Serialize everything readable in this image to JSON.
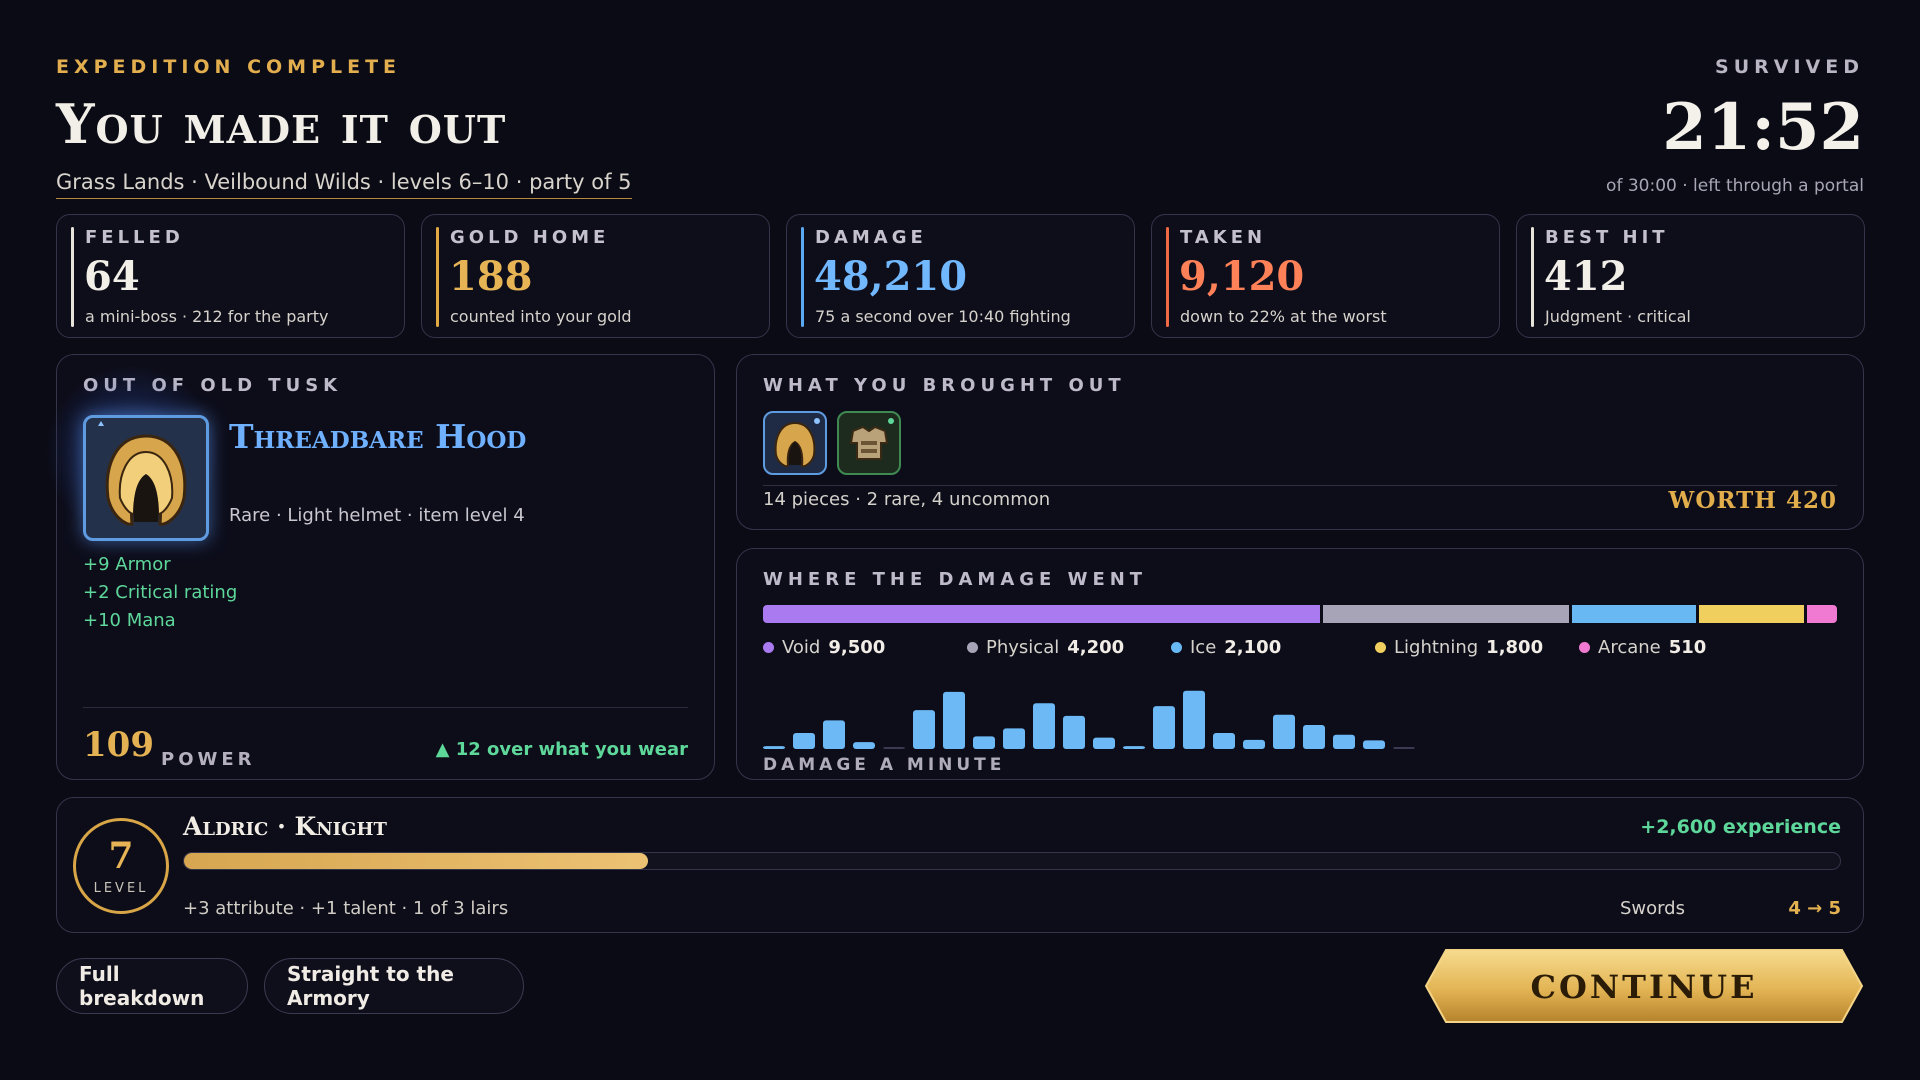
{
  "header": {
    "eyebrow": "EXPEDITION COMPLETE",
    "title": "You made it out",
    "subtitle": "Grass Lands · Veilbound Wilds · levels 6–10 · party of 5",
    "survived_label": "SURVIVED",
    "survived_time": "21:52",
    "survived_sub": "of 30:00 · left through a portal"
  },
  "stats": [
    {
      "label": "FELLED",
      "value": "64",
      "sub": "a mini-boss · 212 for the party",
      "color": "#f2efe8",
      "accent": "#e8e4da"
    },
    {
      "label": "GOLD HOME",
      "value": "188",
      "sub": "counted into your gold",
      "color": "#e6b455",
      "accent": "#e0a944"
    },
    {
      "label": "DAMAGE",
      "value": "48,210",
      "sub": "75 a second over 10:40 fighting",
      "color": "#72b8ff",
      "accent": "#5aa7f2"
    },
    {
      "label": "TAKEN",
      "value": "9,120",
      "sub": "down to 22% at the worst",
      "color": "#ff8158",
      "accent": "#ef6a44"
    },
    {
      "label": "BEST HIT",
      "value": "412",
      "sub": "Judgment · critical",
      "color": "#f2efe8",
      "accent": "#e8e4da"
    }
  ],
  "loot": {
    "label": "OUT OF OLD TUSK",
    "item_name": "Threadbare Hood",
    "item_meta": "Rare · Light helmet · item level 4",
    "item_icon": "hood-icon",
    "item_stats": [
      "+9 Armor",
      "+2 Critical rating",
      "+10 Mana"
    ],
    "power_value": "109",
    "power_label": "POWER",
    "power_compare": "▲ 12 over what you wear"
  },
  "brought_out": {
    "label": "WHAT YOU BROUGHT OUT",
    "thumbs": [
      "hood-icon",
      "chest-armor-icon"
    ],
    "count_text": "14 pieces · 2 rare, 4 uncommon",
    "worth_text": "WORTH 420"
  },
  "damage": {
    "label": "WHERE THE DAMAGE WENT",
    "minute_label": "DAMAGE A MINUTE",
    "types": [
      {
        "name": "Void",
        "value": 9500,
        "display": "9,500",
        "color": "#a97af0"
      },
      {
        "name": "Physical",
        "value": 4200,
        "display": "4,200",
        "color": "#a8a4b8"
      },
      {
        "name": "Ice",
        "value": 2100,
        "display": "2,100",
        "color": "#68b8f4"
      },
      {
        "name": "Lightning",
        "value": 1800,
        "display": "1,800",
        "color": "#f0cf5e"
      },
      {
        "name": "Arcane",
        "value": 510,
        "display": "510",
        "color": "#f07ad2"
      }
    ]
  },
  "chart_data": {
    "type": "bar",
    "title": "DAMAGE A MINUTE",
    "categories": [
      "1",
      "2",
      "3",
      "4",
      "5",
      "6",
      "7",
      "8",
      "9",
      "10",
      "11",
      "12",
      "13",
      "14",
      "15",
      "16",
      "17",
      "18",
      "19",
      "20",
      "21",
      "22"
    ],
    "values": [
      0.05,
      0.28,
      0.5,
      0.12,
      0.02,
      0.68,
      1.0,
      0.22,
      0.36,
      0.8,
      0.58,
      0.2,
      0.05,
      0.75,
      1.02,
      0.28,
      0.16,
      0.6,
      0.42,
      0.25,
      0.15,
      0.02
    ],
    "ylim": [
      0,
      1.05
    ],
    "grid": false,
    "color": "#6cb9f5"
  },
  "character": {
    "level": "7",
    "level_word": "LEVEL",
    "name": "Aldric · Knight",
    "xp_gain": "+2,600 experience",
    "xp_progress": 0.28,
    "sub": "+3 attribute · +1 talent · 1 of 3 lairs",
    "skill_name": "Swords",
    "skill_progress": "4 → 5"
  },
  "buttons": {
    "breakdown": "Full breakdown",
    "armory": "Straight to the Armory",
    "continue": "CONTINUE"
  }
}
